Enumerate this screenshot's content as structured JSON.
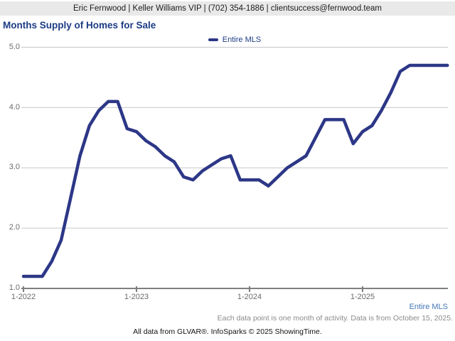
{
  "header": {
    "contact_line": "Eric Fernwood | Keller Williams VIP | (702) 354-1886 | clientsuccess@fernwood.team"
  },
  "title": "Months Supply of Homes for Sale",
  "legend": {
    "label": "Entire MLS"
  },
  "footer": {
    "series_link": "Entire MLS",
    "data_note": "Each data point is one month of activity. Data is from October 15, 2025.",
    "attribution": "All data from GLVAR®. InfoSparks © 2025 ShowingTime."
  },
  "colors": {
    "line": "#2d3787",
    "title_text": "#1c3c85",
    "grid": "#c6c6c6",
    "axis": "#7f7f7f",
    "tick_text": "#6b6b6b",
    "header_bg": "#e9e9e9",
    "footer_link": "#4576b5"
  },
  "chart_data": {
    "type": "line",
    "title": "Months Supply of Homes for Sale",
    "x_start": "1-2022",
    "x_end": "10-2025",
    "x_unit": "month",
    "categories": [
      "1-2022",
      "2-2022",
      "3-2022",
      "4-2022",
      "5-2022",
      "6-2022",
      "7-2022",
      "8-2022",
      "9-2022",
      "10-2022",
      "11-2022",
      "12-2022",
      "1-2023",
      "2-2023",
      "3-2023",
      "4-2023",
      "5-2023",
      "6-2023",
      "7-2023",
      "8-2023",
      "9-2023",
      "10-2023",
      "11-2023",
      "12-2023",
      "1-2024",
      "2-2024",
      "3-2024",
      "4-2024",
      "5-2024",
      "6-2024",
      "7-2024",
      "8-2024",
      "9-2024",
      "10-2024",
      "11-2024",
      "12-2024",
      "1-2025",
      "2-2025",
      "3-2025",
      "4-2025",
      "5-2025",
      "6-2025",
      "7-2025",
      "8-2025",
      "9-2025",
      "10-2025"
    ],
    "series": [
      {
        "name": "Entire MLS",
        "values": [
          1.2,
          1.2,
          1.2,
          1.45,
          1.8,
          2.5,
          3.2,
          3.7,
          3.95,
          4.1,
          4.1,
          3.65,
          3.6,
          3.45,
          3.35,
          3.2,
          3.1,
          2.85,
          2.8,
          2.95,
          3.05,
          3.15,
          3.2,
          2.8,
          2.8,
          2.8,
          2.7,
          2.85,
          3.0,
          3.1,
          3.2,
          3.5,
          3.8,
          3.8,
          3.8,
          3.4,
          3.6,
          3.7,
          3.95,
          4.25,
          4.6,
          4.7,
          4.7,
          4.7,
          4.7,
          4.7
        ]
      }
    ],
    "x_tick_labels": [
      "1-2022",
      "1-2023",
      "1-2024",
      "1-2025"
    ],
    "x_tick_month_indices": [
      0,
      12,
      24,
      36
    ],
    "y_tick_labels": [
      "5.0",
      "4.0",
      "3.0",
      "2.0",
      "1.0"
    ],
    "ylim": [
      1.0,
      5.0
    ],
    "grid": "horizontal",
    "legend_position": "top-center"
  }
}
